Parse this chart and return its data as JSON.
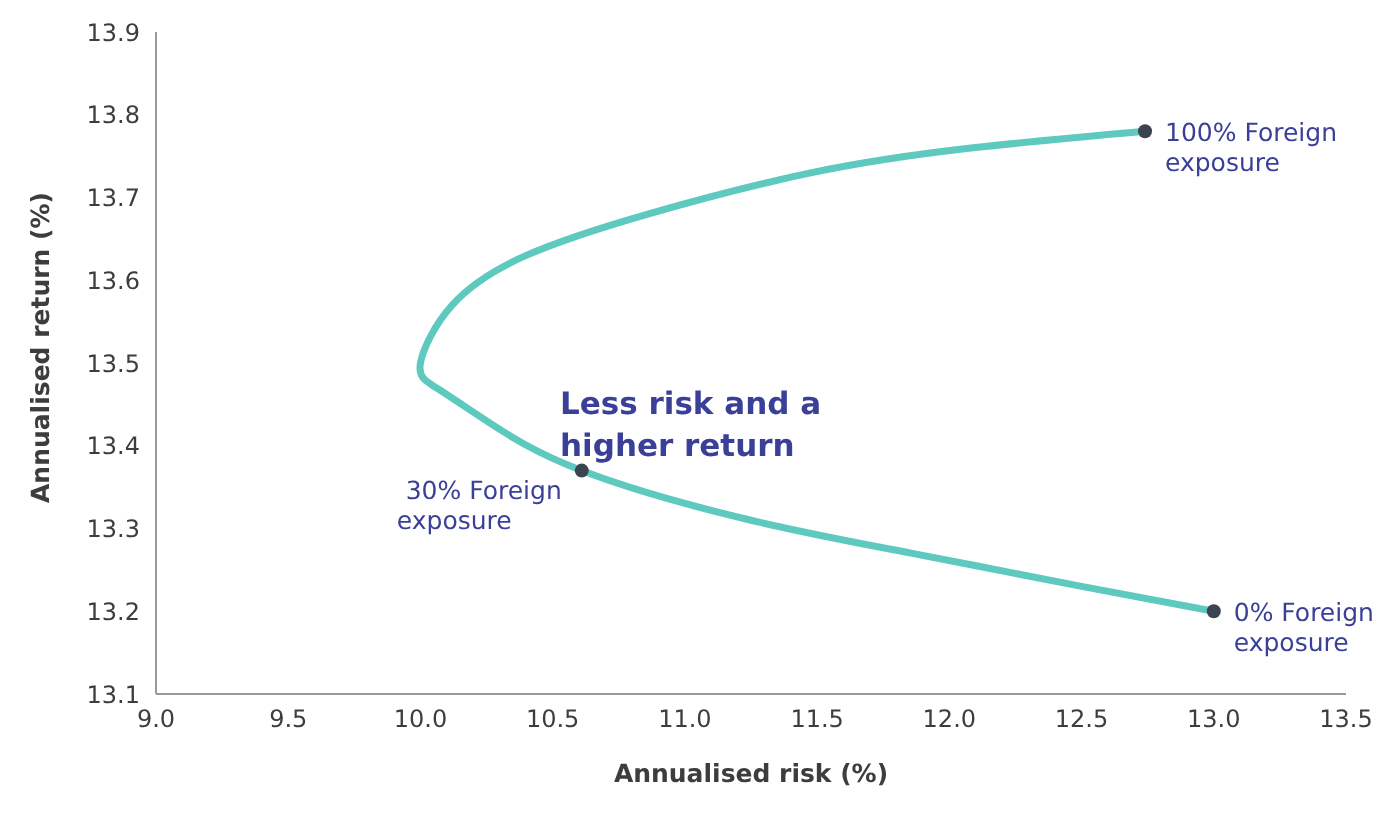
{
  "chart_data": {
    "type": "line",
    "xlabel": "Annualised risk (%)",
    "ylabel": "Annualised return (%)",
    "xlim": [
      9.0,
      13.5
    ],
    "xticks": [
      {
        "value": 9.0,
        "label": "9.0"
      },
      {
        "value": 9.5,
        "label": "9.5"
      },
      {
        "value": 10.0,
        "label": "10.0"
      },
      {
        "value": 10.5,
        "label": "10.5"
      },
      {
        "value": 11.0,
        "label": "11.0"
      },
      {
        "value": 11.5,
        "label": "11.5"
      },
      {
        "value": 12.0,
        "label": "12.0"
      },
      {
        "value": 12.5,
        "label": "12.5"
      },
      {
        "value": 13.0,
        "label": "13.0"
      },
      {
        "value": 13.5,
        "label": "13.5"
      }
    ],
    "ylim": [
      13.1,
      13.9
    ],
    "yticks": [
      13.1,
      13.2,
      13.3,
      13.4,
      13.5,
      13.6,
      13.7,
      13.8,
      13.9
    ],
    "series": [
      {
        "color": "#5ec9be",
        "x": [
          13.0,
          12.5,
          11.86,
          11.25,
          10.61,
          10.25,
          10.06,
          10.0,
          10.12,
          10.4,
          10.86,
          11.48,
          12.09,
          12.74
        ],
        "values": [
          13.2,
          13.23,
          13.27,
          13.31,
          13.37,
          13.43,
          13.47,
          13.5,
          13.57,
          13.63,
          13.68,
          13.73,
          13.76,
          13.78
        ]
      },
      {
        "type": "scatter",
        "color": "#3d4451",
        "x": [
          13.0,
          10.61,
          12.74
        ],
        "values": [
          13.2,
          13.37,
          13.78
        ]
      }
    ],
    "annotations": [
      {
        "text": "100% Foreign exposure",
        "x": 12.74,
        "y": 13.78
      },
      {
        "text": "30% Foreign exposure",
        "x": 10.61,
        "y": 13.37
      },
      {
        "text": "0% Foreign exposure",
        "x": 13.0,
        "y": 13.2
      },
      "Less risk and a higher return"
    ]
  }
}
